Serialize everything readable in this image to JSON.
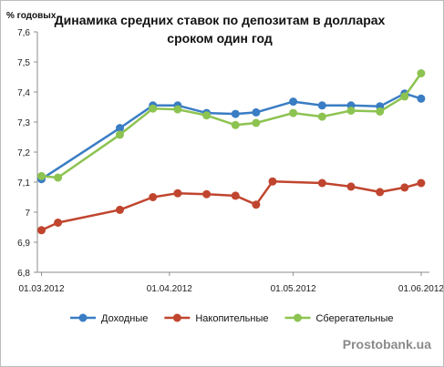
{
  "chart_data": {
    "type": "line",
    "title_lines": [
      "Динамика средних ставок по депозитам в долларах",
      "сроком один год"
    ],
    "ylabel": "% годовых",
    "ylim": [
      6.8,
      7.6
    ],
    "y_ticks": [
      "6,8",
      "6,9",
      "7",
      "7,1",
      "7,2",
      "7,3",
      "7,4",
      "7,5",
      "7,6"
    ],
    "x_tick_labels": [
      "01.03.2012",
      "01.04.2012",
      "01.05.2012",
      "01.06.2012"
    ],
    "x_tick_dates": [
      "2012-03-01",
      "2012-04-01",
      "2012-05-01",
      "2012-06-01"
    ],
    "x_dates": [
      "2012-03-01",
      "2012-03-05",
      "2012-03-20",
      "2012-03-28",
      "2012-04-03",
      "2012-04-10",
      "2012-04-17",
      "2012-04-22",
      "2012-04-26",
      "2012-05-01",
      "2012-05-08",
      "2012-05-15",
      "2012-05-22",
      "2012-05-28",
      "2012-06-01"
    ],
    "series": [
      {
        "name": "Доходные",
        "color": "#3a7dc4",
        "values": [
          7.11,
          null,
          7.28,
          7.355,
          7.355,
          7.33,
          7.327,
          7.332,
          null,
          7.368,
          7.355,
          7.355,
          7.352,
          7.395,
          7.378
        ]
      },
      {
        "name": "Накопительные",
        "color": "#c0452e",
        "values": [
          6.94,
          6.965,
          7.008,
          7.05,
          7.063,
          7.06,
          7.055,
          7.025,
          7.102,
          null,
          7.097,
          7.085,
          7.067,
          7.082,
          7.097
        ]
      },
      {
        "name": "Сберегательные",
        "color": "#8dc351",
        "values": [
          7.12,
          7.115,
          7.258,
          7.345,
          7.342,
          7.322,
          7.29,
          7.297,
          null,
          7.33,
          7.318,
          7.338,
          7.335,
          7.385,
          7.462
        ]
      }
    ],
    "grid": false,
    "legend": "bottom"
  },
  "watermark": "Prostobank.ua"
}
